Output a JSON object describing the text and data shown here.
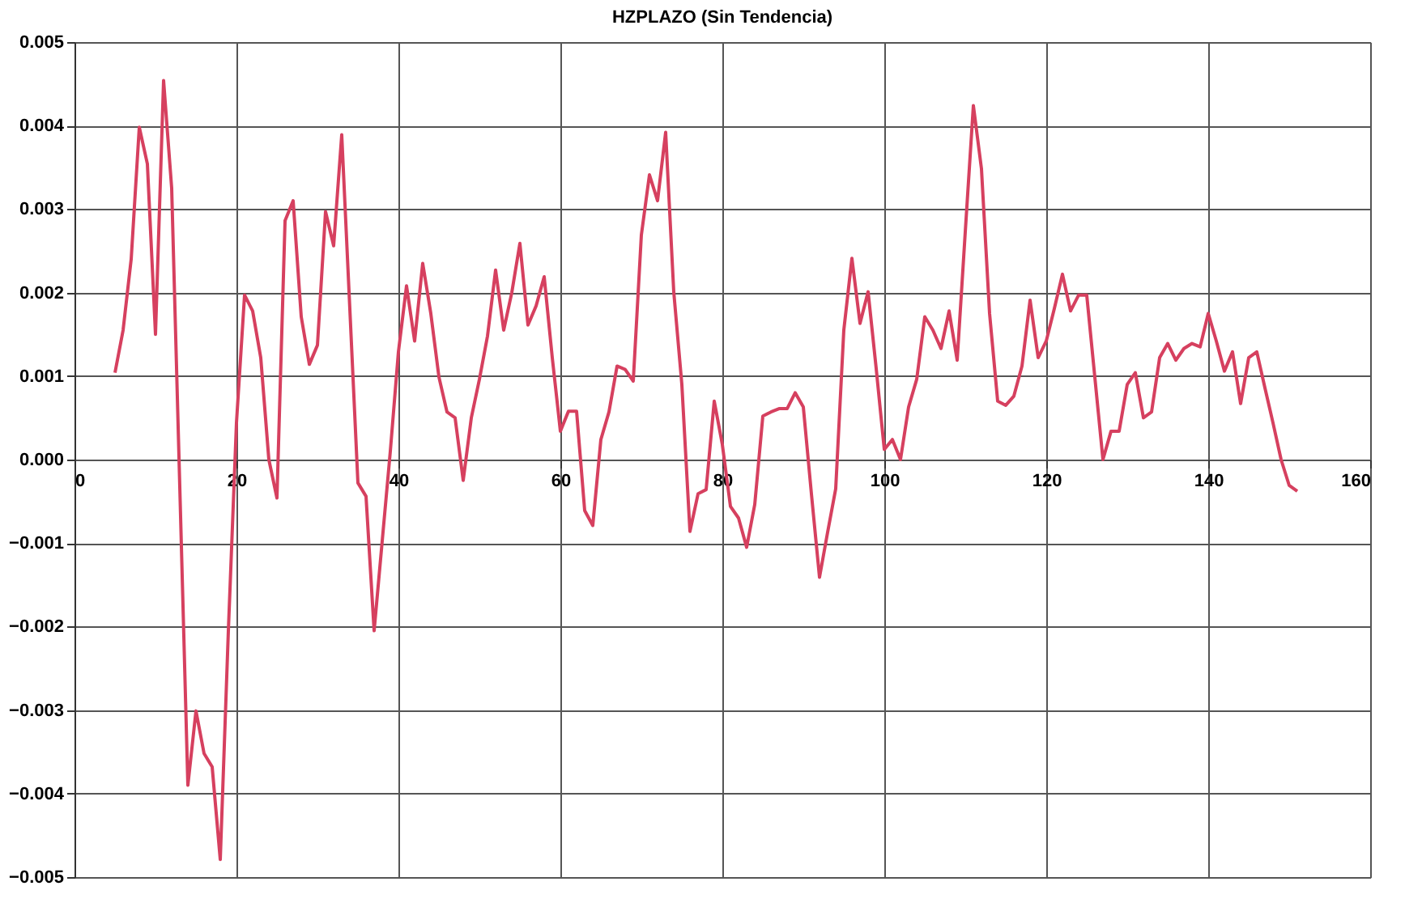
{
  "chart_data": {
    "type": "line",
    "title": "HZPLAZO (Sin Tendencia)",
    "x": [
      5,
      6,
      7,
      8,
      9,
      10,
      11,
      12,
      14,
      15,
      16,
      17,
      18,
      19,
      20,
      21,
      22,
      23,
      24,
      25,
      26,
      27,
      28,
      29,
      30,
      31,
      32,
      33,
      35,
      36,
      37,
      39,
      40,
      41,
      42,
      43,
      44,
      45,
      46,
      47,
      48,
      49,
      50,
      51,
      52,
      53,
      54,
      55,
      56,
      57,
      58,
      59,
      60,
      61,
      62,
      63,
      64,
      65,
      66,
      67,
      68,
      69,
      70,
      71,
      72,
      73,
      74,
      75,
      76,
      77,
      78,
      79,
      80,
      81,
      82,
      83,
      84,
      85,
      86,
      87,
      88,
      89,
      90,
      91,
      92,
      93,
      94,
      95,
      96,
      97,
      98,
      99,
      100,
      101,
      102,
      103,
      104,
      105,
      106,
      107,
      108,
      109,
      110,
      111,
      112,
      113,
      114,
      115,
      116,
      117,
      118,
      119,
      120,
      121,
      122,
      123,
      124,
      125,
      127,
      128,
      129,
      130,
      131,
      132,
      133,
      134,
      135,
      136,
      137,
      138,
      139,
      140,
      141,
      142,
      143,
      144,
      145,
      146,
      147,
      148,
      149,
      150,
      151
    ],
    "series": [
      {
        "color": "#d6405f",
        "values": [
          0.00104,
          0.00155,
          0.0024,
          0.00398,
          0.00354,
          0.0015,
          0.00454,
          0.00325,
          -0.0039,
          -0.00301,
          -0.00352,
          -0.00368,
          -0.00479,
          -0.00205,
          0.00044,
          0.00197,
          0.00178,
          0.00122,
          0.0,
          -0.00046,
          0.00286,
          0.0031,
          0.00171,
          0.00114,
          0.00137,
          0.00297,
          0.00256,
          0.00389,
          -0.00028,
          -0.00044,
          -0.00205,
          0.0001,
          0.00129,
          0.00208,
          0.00142,
          0.00235,
          0.00175,
          0.00099,
          0.00057,
          0.0005,
          -0.00025,
          0.0005,
          0.00096,
          0.00148,
          0.00227,
          0.00155,
          0.002,
          0.00259,
          0.00161,
          0.00184,
          0.00219,
          0.00122,
          0.00034,
          0.00058,
          0.00058,
          -0.00061,
          -0.00079,
          0.00024,
          0.00057,
          0.00112,
          0.00108,
          0.00094,
          0.00269,
          0.00341,
          0.0031,
          0.00392,
          0.00201,
          0.0009,
          -0.00086,
          -0.00041,
          -0.00036,
          0.0007,
          0.00018,
          -0.00056,
          -0.0007,
          -0.00105,
          -0.00054,
          0.00052,
          0.00057,
          0.00061,
          0.00061,
          0.0008,
          0.00063,
          -0.00041,
          -0.00141,
          -0.00087,
          -0.00035,
          0.00155,
          0.00241,
          0.00163,
          0.00201,
          0.00109,
          0.00012,
          0.00024,
          0.0,
          0.00063,
          0.00096,
          0.00171,
          0.00155,
          0.00133,
          0.00178,
          0.00119,
          0.00273,
          0.00424,
          0.00348,
          0.00175,
          0.0007,
          0.00065,
          0.00076,
          0.00112,
          0.00191,
          0.00122,
          0.00142,
          0.00181,
          0.00222,
          0.00178,
          0.00197,
          0.00197,
          0.0,
          0.00034,
          0.00034,
          0.0009,
          0.00104,
          0.0005,
          0.00057,
          0.00122,
          0.00139,
          0.00119,
          0.00133,
          0.00139,
          0.00135,
          0.00175,
          0.00142,
          0.00106,
          0.00129,
          0.00067,
          0.00122,
          0.00129,
          0.00086,
          0.00044,
          0.0,
          -0.00031,
          -0.00038
        ]
      }
    ],
    "xlim": [
      0,
      160
    ],
    "xticks": [
      0,
      20,
      40,
      60,
      80,
      100,
      120,
      140,
      160
    ],
    "ylim": [
      -0.005,
      0.005
    ],
    "yticks": [
      -0.005,
      -0.004,
      -0.003,
      -0.002,
      -0.001,
      {
        "value": 0,
        "label": "0.000"
      },
      0.001,
      0.002,
      0.003,
      0.004,
      0.005
    ],
    "grid": true,
    "marker": "none",
    "line_style": "solid"
  }
}
